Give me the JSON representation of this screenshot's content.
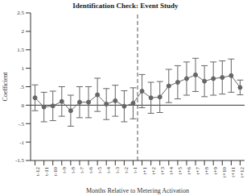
{
  "chart_data": {
    "type": "line",
    "title": "Identification Check: Event Study",
    "x_label": "Months Relative to Metering Activation",
    "y_label": "Coefficient",
    "categories": [
      "t-12",
      "t-11",
      "t-10",
      "t-9",
      "t-8",
      "t-7",
      "t-6",
      "t-5",
      "t-4",
      "t-3",
      "t-2",
      "t-1",
      "t+1",
      "t+2",
      "t+3",
      "t+4",
      "t+5",
      "t+6",
      "t+7",
      "t+8",
      "t+9",
      "t+10",
      "t+11",
      "t+12"
    ],
    "values": [
      0.2,
      -0.05,
      -0.02,
      0.1,
      -0.15,
      0.08,
      0.08,
      0.28,
      0.03,
      0.12,
      -0.03,
      0.05,
      0.38,
      0.2,
      0.22,
      0.52,
      0.62,
      0.72,
      0.82,
      0.65,
      0.72,
      0.75,
      0.8,
      0.48
    ],
    "error": [
      0.35,
      0.4,
      0.4,
      0.4,
      0.42,
      0.42,
      0.42,
      0.45,
      0.42,
      0.42,
      0.42,
      0.42,
      0.45,
      0.42,
      0.42,
      0.45,
      0.45,
      0.45,
      0.45,
      0.42,
      0.45,
      0.45,
      0.45,
      0.2
    ],
    "error_bars": true,
    "color": "#666666",
    "marker": "circle",
    "line_style": "solid",
    "ylim": [
      -1.5,
      2.5
    ],
    "yticks": [
      -1.5,
      -1,
      {
        "value": -0.5,
        "label": "-.5"
      },
      0,
      {
        "value": 0.5,
        "label": ".5"
      },
      1,
      1.5,
      2,
      2.5
    ],
    "grid": false
  }
}
